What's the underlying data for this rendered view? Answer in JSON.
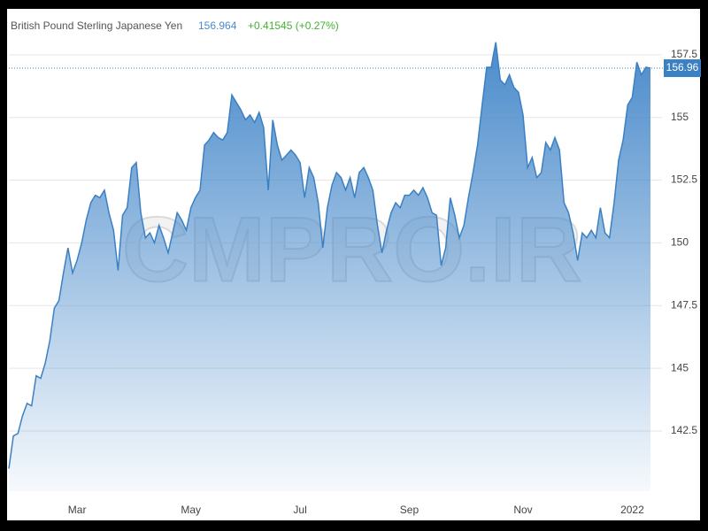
{
  "chart_data": {
    "type": "area",
    "title": "British Pound Sterling Japanese Yen",
    "price": "156.964",
    "change": "+0.41545 (+0.27%)",
    "price_tag": "156.96",
    "watermark": "CMPRO.IR",
    "color": "#3b80c3",
    "grid": true,
    "ylim": [
      140.1,
      158.2
    ],
    "yticks": [
      142.5,
      145,
      147.5,
      150,
      152.5,
      155,
      157.5
    ],
    "categories": [
      null,
      null,
      null,
      null,
      null,
      null,
      null,
      null,
      null,
      null,
      null,
      null,
      null,
      null,
      null,
      "Mar",
      null,
      null,
      null,
      null,
      null,
      null,
      null,
      null,
      null,
      null,
      null,
      null,
      null,
      null,
      null,
      null,
      null,
      null,
      null,
      null,
      null,
      null,
      null,
      null,
      "May",
      null,
      null,
      null,
      null,
      null,
      null,
      null,
      null,
      null,
      null,
      null,
      null,
      null,
      null,
      null,
      null,
      null,
      null,
      null,
      null,
      null,
      null,
      null,
      "Jul",
      null,
      null,
      null,
      null,
      null,
      null,
      null,
      null,
      null,
      null,
      null,
      null,
      null,
      null,
      null,
      null,
      null,
      null,
      null,
      null,
      null,
      null,
      null,
      "Sep",
      null,
      null,
      null,
      null,
      null,
      null,
      null,
      null,
      null,
      null,
      null,
      null,
      null,
      null,
      null,
      null,
      null,
      null,
      null,
      null,
      null,
      null,
      null,
      null,
      "Nov",
      null,
      null,
      null,
      null,
      null,
      null,
      null,
      null,
      null,
      null,
      null,
      null,
      null,
      null,
      null,
      null,
      null,
      null,
      null,
      null,
      null,
      null,
      null,
      "2022",
      null,
      null,
      null,
      null
    ],
    "values": [
      141.0,
      142.3,
      142.4,
      143.1,
      143.6,
      143.5,
      144.7,
      144.6,
      145.2,
      146.1,
      147.4,
      147.7,
      148.8,
      149.8,
      148.8,
      149.3,
      150.0,
      150.9,
      151.6,
      151.9,
      151.8,
      152.1,
      151.2,
      150.5,
      148.9,
      151.1,
      151.4,
      153.0,
      153.2,
      151.2,
      150.2,
      150.4,
      150.0,
      150.7,
      150.2,
      149.6,
      150.4,
      151.2,
      150.9,
      150.5,
      151.4,
      151.8,
      152.1,
      153.9,
      154.1,
      154.4,
      154.2,
      154.1,
      154.4,
      155.9,
      155.6,
      155.3,
      154.9,
      155.1,
      154.8,
      155.2,
      154.6,
      152.1,
      154.9,
      153.9,
      153.3,
      153.5,
      153.7,
      153.5,
      153.2,
      151.8,
      153.0,
      152.6,
      151.6,
      149.8,
      151.4,
      152.3,
      152.8,
      152.6,
      152.1,
      152.6,
      151.8,
      152.8,
      153.0,
      152.6,
      152.1,
      150.7,
      149.6,
      150.5,
      151.2,
      151.6,
      151.4,
      151.9,
      151.9,
      152.1,
      151.9,
      152.2,
      151.8,
      151.2,
      151.1,
      149.1,
      149.8,
      151.8,
      151.1,
      150.2,
      150.7,
      151.8,
      152.8,
      153.9,
      155.5,
      157.0,
      157.0,
      158.0,
      156.5,
      156.3,
      156.7,
      156.2,
      156.0,
      155.1,
      153.0,
      153.4,
      152.6,
      152.8,
      154.0,
      153.7,
      154.2,
      153.7,
      151.6,
      151.2,
      150.4,
      149.3,
      150.4,
      150.2,
      150.5,
      150.2,
      151.4,
      150.4,
      150.2,
      151.6,
      153.3,
      154.1,
      155.5,
      155.8,
      157.2,
      156.7,
      157.0,
      156.964
    ]
  }
}
